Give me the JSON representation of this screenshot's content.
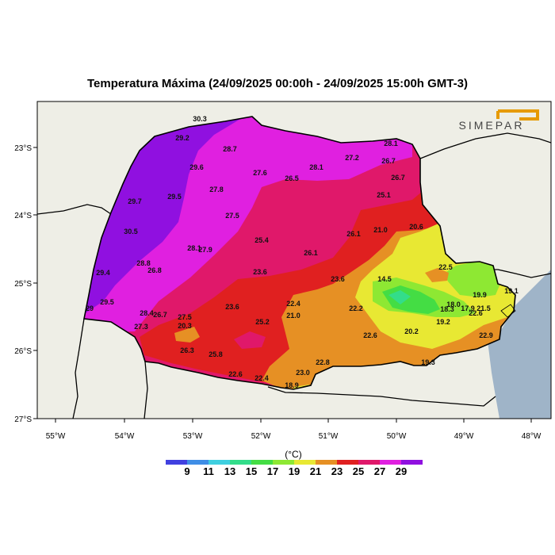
{
  "title": "Temperatura Máxima (24/09/2025 00:00h - 24/09/2025 15:00h GMT-3)",
  "logo_text": "SIMEPAR",
  "axes": {
    "lon_ticks": [
      "55°W",
      "54°W",
      "53°W",
      "52°W",
      "51°W",
      "50°W",
      "49°W",
      "48°W"
    ],
    "lat_ticks": [
      "23°S",
      "24°S",
      "25°S",
      "26°S",
      "27°S"
    ]
  },
  "colorbar": {
    "unit": "(°C)",
    "labels": [
      "9",
      "11",
      "13",
      "15",
      "17",
      "19",
      "21",
      "23",
      "25",
      "27",
      "29"
    ],
    "colors": [
      "#4040e0",
      "#3f8ee6",
      "#3fcfe0",
      "#33dd8a",
      "#44dd44",
      "#8ee833",
      "#e8e833",
      "#e69024",
      "#e02020",
      "#e0186a",
      "#e020e0",
      "#9010e0"
    ]
  },
  "colors": {
    "land": "#eeeee6",
    "ocean": "#9fb4c8"
  },
  "stations": [
    {
      "v": "30.3"
    },
    {
      "v": "29.2"
    },
    {
      "v": "28.7"
    },
    {
      "v": "29.6"
    },
    {
      "v": "27.6"
    },
    {
      "v": "28.1"
    },
    {
      "v": "27.2"
    },
    {
      "v": "28.1"
    },
    {
      "v": "26.7"
    },
    {
      "v": "26.5"
    },
    {
      "v": "26.7"
    },
    {
      "v": "29.7"
    },
    {
      "v": "29.5"
    },
    {
      "v": "27.8"
    },
    {
      "v": "25.1"
    },
    {
      "v": "27.5"
    },
    {
      "v": "30.5"
    },
    {
      "v": "26.1"
    },
    {
      "v": "21.0"
    },
    {
      "v": "20.6"
    },
    {
      "v": "25.4"
    },
    {
      "v": "28.1"
    },
    {
      "v": "27.9"
    },
    {
      "v": "26.1"
    },
    {
      "v": "28.8"
    },
    {
      "v": "26.8"
    },
    {
      "v": "22.5"
    },
    {
      "v": "29.4"
    },
    {
      "v": "23.6"
    },
    {
      "v": "23.6"
    },
    {
      "v": "14.5"
    },
    {
      "v": "19.1"
    },
    {
      "v": "29.5"
    },
    {
      "v": "19.9"
    },
    {
      "v": "22.4"
    },
    {
      "v": "23.6"
    },
    {
      "v": "18.0"
    },
    {
      "v": "28.4"
    },
    {
      "v": "26.7"
    },
    {
      "v": "21.0"
    },
    {
      "v": "22.2"
    },
    {
      "v": "18.3"
    },
    {
      "v": "17.9"
    },
    {
      "v": "21.5"
    },
    {
      "v": "27.5"
    },
    {
      "v": "22.6"
    },
    {
      "v": "27.3"
    },
    {
      "v": "20.3"
    },
    {
      "v": "25.2"
    },
    {
      "v": "19.2"
    },
    {
      "v": "22.6"
    },
    {
      "v": "20.2"
    },
    {
      "v": "22.9"
    },
    {
      "v": "26.3"
    },
    {
      "v": "25.8"
    },
    {
      "v": "22.8"
    },
    {
      "v": "19.3"
    },
    {
      "v": "22.6"
    },
    {
      "v": "23.0"
    },
    {
      "v": "22.4"
    },
    {
      "v": "18.9"
    },
    {
      "v": "29"
    }
  ]
}
